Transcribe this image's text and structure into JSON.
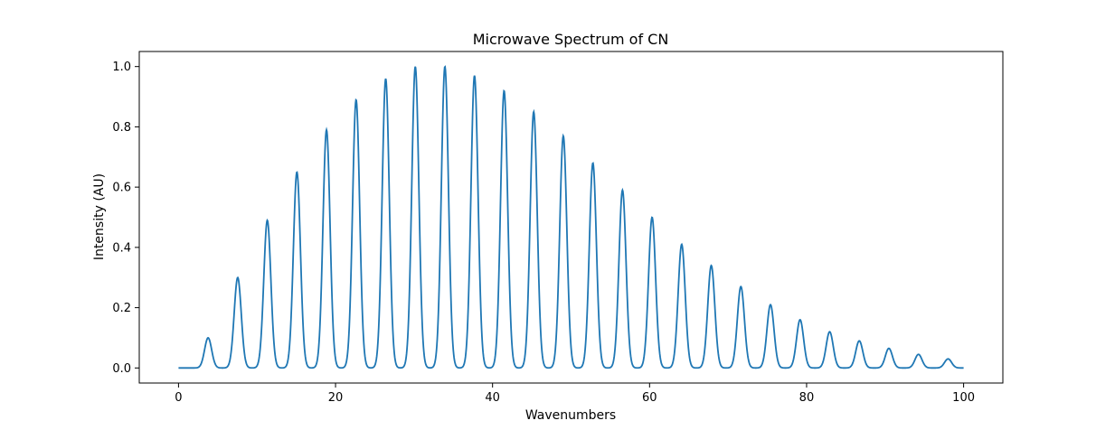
{
  "chart_data": {
    "type": "line",
    "title": "Microwave Spectrum of CN",
    "xlabel": "Wavenumbers",
    "ylabel": "Intensity (AU)",
    "xlim": [
      -5,
      105
    ],
    "ylim": [
      -0.05,
      1.05
    ],
    "x_ticks": [
      0,
      20,
      40,
      60,
      80,
      100
    ],
    "y_ticks": [
      0.0,
      0.2,
      0.4,
      0.6,
      0.8,
      1.0
    ],
    "x_tick_labels": [
      "0",
      "20",
      "40",
      "60",
      "80",
      "100"
    ],
    "y_tick_labels": [
      "0.0",
      "0.2",
      "0.4",
      "0.6",
      "0.8",
      "1.0"
    ],
    "grid": false,
    "line_color": "#1f77b4",
    "x_range": [
      0,
      100
    ],
    "peak_width": 0.45,
    "series": [
      {
        "peaks_x": [
          3.77,
          7.54,
          11.31,
          15.08,
          18.85,
          22.62,
          26.39,
          30.16,
          33.93,
          37.7,
          41.47,
          45.24,
          49.01,
          52.78,
          56.55,
          60.32,
          64.09,
          67.86,
          71.63,
          75.4,
          79.17,
          82.94,
          86.71,
          90.48,
          94.25,
          98.02
        ],
        "peaks_y": [
          0.1,
          0.3,
          0.49,
          0.65,
          0.79,
          0.89,
          0.96,
          1.0,
          1.0,
          0.97,
          0.92,
          0.85,
          0.77,
          0.68,
          0.59,
          0.5,
          0.41,
          0.34,
          0.27,
          0.21,
          0.16,
          0.12,
          0.09,
          0.065,
          0.045,
          0.03
        ]
      }
    ]
  }
}
